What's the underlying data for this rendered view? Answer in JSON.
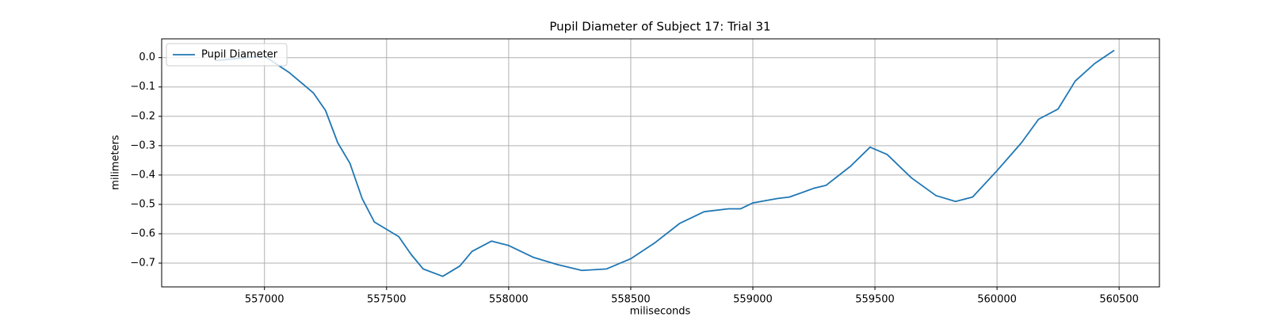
{
  "chart_data": {
    "type": "line",
    "title": "Pupil Diameter of Subject 17: Trial 31",
    "xlabel": "miliseconds",
    "ylabel": "milimeters",
    "x": [
      556800,
      557000,
      557100,
      557200,
      557250,
      557300,
      557350,
      557400,
      557450,
      557500,
      557550,
      557600,
      557650,
      557730,
      557800,
      557850,
      557930,
      558000,
      558100,
      558200,
      558300,
      558400,
      558500,
      558600,
      558700,
      558800,
      558900,
      558950,
      559000,
      559100,
      559150,
      559250,
      559300,
      559400,
      559480,
      559550,
      559650,
      559750,
      559830,
      559900,
      560000,
      560100,
      560170,
      560250,
      560320,
      560400,
      560480
    ],
    "series": [
      {
        "name": "Pupil Diameter",
        "color": "#1f77b4",
        "values": [
          -0.01,
          0.005,
          -0.05,
          -0.12,
          -0.18,
          -0.29,
          -0.36,
          -0.48,
          -0.56,
          -0.585,
          -0.61,
          -0.67,
          -0.72,
          -0.745,
          -0.71,
          -0.66,
          -0.625,
          -0.64,
          -0.68,
          -0.705,
          -0.725,
          -0.72,
          -0.685,
          -0.63,
          -0.565,
          -0.525,
          -0.515,
          -0.515,
          -0.495,
          -0.48,
          -0.475,
          -0.445,
          -0.435,
          -0.37,
          -0.305,
          -0.33,
          -0.41,
          -0.47,
          -0.49,
          -0.475,
          -0.385,
          -0.29,
          -0.21,
          -0.175,
          -0.08,
          -0.02,
          0.025
        ]
      }
    ],
    "xlim": [
      556579,
      560665
    ],
    "ylim": [
      -0.781,
      0.064
    ],
    "xticks": [
      557000,
      557500,
      558000,
      558500,
      559000,
      559500,
      560000,
      560500
    ],
    "yticks": [
      {
        "value": 0,
        "label": "0.0"
      },
      {
        "value": -0.1,
        "label": "−0.1"
      },
      {
        "value": -0.2,
        "label": "−0.2"
      },
      {
        "value": -0.3,
        "label": "−0.3"
      },
      {
        "value": -0.4,
        "label": "−0.4"
      },
      {
        "value": -0.5,
        "label": "−0.5"
      },
      {
        "value": -0.6,
        "label": "−0.6"
      },
      {
        "value": -0.7,
        "label": "−0.7"
      }
    ],
    "grid": true,
    "legend": "upper left"
  }
}
